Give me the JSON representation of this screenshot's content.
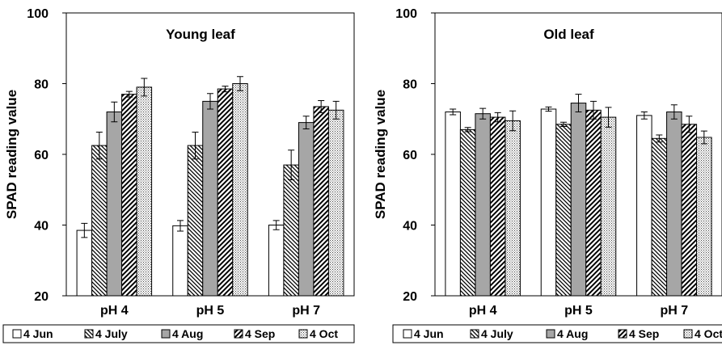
{
  "chart_data": [
    {
      "type": "bar",
      "title": "Young leaf",
      "ylabel": "SPAD reading value",
      "xlabel": "",
      "ylim": [
        20,
        100
      ],
      "yticks": [
        20,
        40,
        60,
        80,
        100
      ],
      "grid": false,
      "legend_position": "bottom",
      "categories": [
        "pH 4",
        "pH 5",
        "pH 7"
      ],
      "series": [
        {
          "name": "4 Jun",
          "pattern": "white",
          "values": [
            38.5,
            39.8,
            40.0
          ],
          "errors": [
            2.0,
            1.5,
            1.3
          ]
        },
        {
          "name": "4 July",
          "pattern": "backslash",
          "values": [
            62.5,
            62.5,
            57.0
          ],
          "errors": [
            3.8,
            3.8,
            4.2
          ]
        },
        {
          "name": "4 Aug",
          "pattern": "gray",
          "values": [
            72.0,
            75.0,
            69.0
          ],
          "errors": [
            2.8,
            2.2,
            1.8
          ]
        },
        {
          "name": "4 Sep",
          "pattern": "slash",
          "values": [
            77.0,
            78.5,
            73.5
          ],
          "errors": [
            0.8,
            0.8,
            1.7
          ]
        },
        {
          "name": "4 Oct",
          "pattern": "dots",
          "values": [
            79.0,
            80.0,
            72.5
          ],
          "errors": [
            2.5,
            2.0,
            2.5
          ]
        }
      ]
    },
    {
      "type": "bar",
      "title": "Old leaf",
      "ylabel": "SPAD reading value",
      "xlabel": "",
      "ylim": [
        20,
        100
      ],
      "yticks": [
        20,
        40,
        60,
        80,
        100
      ],
      "grid": false,
      "legend_position": "bottom",
      "categories": [
        "pH 4",
        "pH 5",
        "pH 7"
      ],
      "series": [
        {
          "name": "4 Jun",
          "pattern": "white",
          "values": [
            72.0,
            72.8,
            71.0
          ],
          "errors": [
            0.8,
            0.6,
            1.0
          ]
        },
        {
          "name": "4 July",
          "pattern": "backslash",
          "values": [
            67.0,
            68.5,
            64.5
          ],
          "errors": [
            0.6,
            0.6,
            1.0
          ]
        },
        {
          "name": "4 Aug",
          "pattern": "gray",
          "values": [
            71.5,
            74.5,
            72.0
          ],
          "errors": [
            1.5,
            2.5,
            2.0
          ]
        },
        {
          "name": "4 Sep",
          "pattern": "slash",
          "values": [
            70.5,
            72.5,
            68.5
          ],
          "errors": [
            1.3,
            2.5,
            2.3
          ]
        },
        {
          "name": "4 Oct",
          "pattern": "dots",
          "values": [
            69.5,
            70.5,
            64.8
          ],
          "errors": [
            2.8,
            2.8,
            1.8
          ]
        }
      ]
    }
  ]
}
